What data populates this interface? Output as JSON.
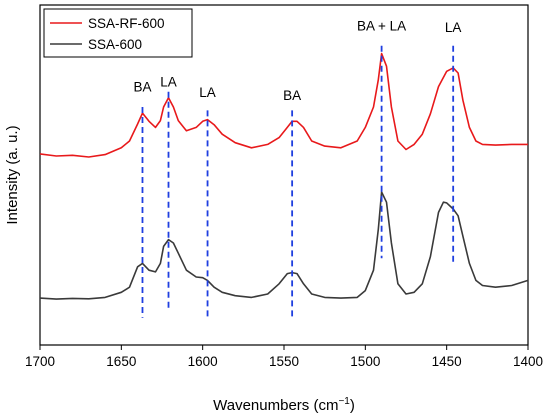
{
  "chart_data": {
    "type": "line",
    "xlabel_main": "Wavenumbers (cm",
    "xlabel_sup": "−1",
    "xlabel_close": ")",
    "ylabel": "Intensity (a. u.)",
    "xlim": [
      1700,
      1400
    ],
    "x_reversed": true,
    "ylim": [
      0,
      1
    ],
    "y_ticks_shown": false,
    "grid": false,
    "legend_position": "top-left",
    "x_ticks": [
      "1700",
      "1650",
      "1600",
      "1550",
      "1500",
      "1450",
      "1400"
    ],
    "series": [
      {
        "name": "SSA-RF-600",
        "color": "#e8191b",
        "x": [
          1700,
          1690,
          1680,
          1670,
          1660,
          1650,
          1645,
          1640,
          1637,
          1633,
          1629,
          1626,
          1624,
          1621,
          1618,
          1615,
          1610,
          1604,
          1600,
          1597,
          1593,
          1588,
          1580,
          1570,
          1560,
          1553,
          1548,
          1545,
          1542,
          1538,
          1533,
          1525,
          1515,
          1505,
          1500,
          1495,
          1492,
          1490,
          1487,
          1484,
          1480,
          1475,
          1470,
          1465,
          1460,
          1455,
          1450,
          1446,
          1443,
          1440,
          1436,
          1432,
          1428,
          1420,
          1410,
          1400
        ],
        "y": [
          0.562,
          0.556,
          0.558,
          0.553,
          0.56,
          0.58,
          0.6,
          0.65,
          0.682,
          0.658,
          0.64,
          0.66,
          0.7,
          0.727,
          0.7,
          0.66,
          0.63,
          0.64,
          0.658,
          0.663,
          0.648,
          0.62,
          0.595,
          0.58,
          0.59,
          0.61,
          0.64,
          0.658,
          0.658,
          0.64,
          0.6,
          0.585,
          0.58,
          0.6,
          0.64,
          0.7,
          0.78,
          0.857,
          0.82,
          0.7,
          0.6,
          0.575,
          0.59,
          0.62,
          0.68,
          0.76,
          0.805,
          0.815,
          0.8,
          0.72,
          0.64,
          0.6,
          0.59,
          0.588,
          0.59,
          0.59
        ]
      },
      {
        "name": "SSA-600",
        "color": "#3a3a3a",
        "x": [
          1700,
          1690,
          1680,
          1670,
          1660,
          1650,
          1645,
          1640,
          1637,
          1633,
          1629,
          1626,
          1624,
          1621,
          1618,
          1615,
          1610,
          1604,
          1600,
          1597,
          1593,
          1588,
          1580,
          1570,
          1560,
          1553,
          1548,
          1545,
          1542,
          1538,
          1533,
          1525,
          1515,
          1505,
          1500,
          1495,
          1492,
          1490,
          1487,
          1484,
          1480,
          1475,
          1470,
          1465,
          1460,
          1455,
          1452,
          1450,
          1446,
          1443,
          1440,
          1436,
          1432,
          1428,
          1420,
          1410,
          1400
        ],
        "y": [
          0.138,
          0.135,
          0.137,
          0.136,
          0.14,
          0.155,
          0.17,
          0.23,
          0.24,
          0.22,
          0.215,
          0.24,
          0.29,
          0.31,
          0.3,
          0.27,
          0.22,
          0.2,
          0.198,
          0.19,
          0.17,
          0.155,
          0.145,
          0.14,
          0.15,
          0.18,
          0.21,
          0.213,
          0.21,
          0.18,
          0.15,
          0.14,
          0.138,
          0.14,
          0.16,
          0.22,
          0.34,
          0.45,
          0.42,
          0.3,
          0.18,
          0.15,
          0.155,
          0.18,
          0.26,
          0.39,
          0.42,
          0.418,
          0.4,
          0.38,
          0.32,
          0.24,
          0.19,
          0.175,
          0.17,
          0.175,
          0.19
        ]
      }
    ],
    "annotations": [
      {
        "label": "BA",
        "x": 1637,
        "line_top": 0.7,
        "line_bottom": 0.08,
        "label_y": 0.745
      },
      {
        "label": "LA",
        "x": 1621,
        "line_top": 0.745,
        "line_bottom": 0.1,
        "label_y": 0.76
      },
      {
        "label": "LA",
        "x": 1597,
        "line_top": 0.69,
        "line_bottom": 0.08,
        "label_y": 0.73
      },
      {
        "label": "BA",
        "x": 1545,
        "line_top": 0.69,
        "line_bottom": 0.08,
        "label_y": 0.72
      },
      {
        "label": "BA + LA",
        "x": 1490,
        "line_top": 0.88,
        "line_bottom": 0.255,
        "label_y": 0.925
      },
      {
        "label": "LA",
        "x": 1446,
        "line_top": 0.88,
        "line_bottom": 0.235,
        "label_y": 0.92
      }
    ],
    "annotation_line_color": "#1f3fe0"
  }
}
